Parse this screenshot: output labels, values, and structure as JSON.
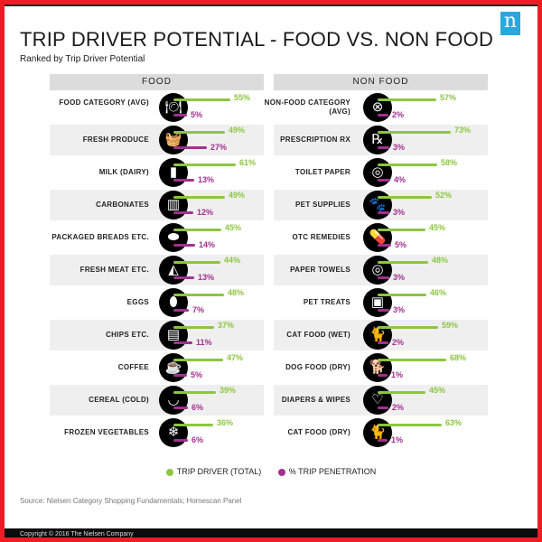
{
  "title": "TRIP DRIVER POTENTIAL - FOOD VS. NON FOOD",
  "subtitle": "Ranked by Trip Driver Potential",
  "logo": "n",
  "colors": {
    "trip_driver": "#8cc63f",
    "trip_penetration": "#a2308f"
  },
  "chart_data": [
    {
      "type": "bar",
      "title": "FOOD",
      "categories": [
        "FOOD CATEGORY (AVG)",
        "FRESH PRODUCE",
        "MILK (DAIRY)",
        "CARBONATES",
        "PACKAGED BREADS ETC.",
        "FRESH MEAT ETC.",
        "EGGS",
        "CHIPS ETC.",
        "COFFEE",
        "CEREAL (COLD)",
        "FROZEN VEGETABLES"
      ],
      "icons": [
        "plate-cutlery-icon",
        "basket-icon",
        "milk-carton-icon",
        "bottle-crate-icon",
        "bread-icon",
        "meat-icon",
        "egg-icon",
        "chips-bag-icon",
        "coffee-cup-icon",
        "cereal-bowl-icon",
        "frozen-bag-icon"
      ],
      "series": [
        {
          "name": "TRIP DRIVER (TOTAL)",
          "values": [
            55,
            49,
            61,
            49,
            45,
            44,
            48,
            37,
            47,
            39,
            36
          ]
        },
        {
          "name": "% TRIP PENETRATION",
          "values": [
            5,
            27,
            13,
            12,
            14,
            13,
            7,
            11,
            5,
            6,
            6
          ]
        }
      ],
      "unit": "%"
    },
    {
      "type": "bar",
      "title": "NON FOOD",
      "categories": [
        "NON-FOOD CATEGORY (AVG)",
        "PRESCRIPTION RX",
        "TOILET PAPER",
        "PET SUPPLIES",
        "OTC REMEDIES",
        "PAPER TOWELS",
        "PET TREATS",
        "CAT FOOD (WET)",
        "DOG FOOD (DRY)",
        "DIAPERS & WIPES",
        "CAT FOOD (DRY)"
      ],
      "icons": [
        "plate-x-icon",
        "rx-icon",
        "toilet-paper-icon",
        "paw-icon",
        "pills-icon",
        "paper-towel-icon",
        "pet-treats-icon",
        "cat-icon",
        "dog-icon",
        "diaper-icon",
        "cat-icon"
      ],
      "series": [
        {
          "name": "TRIP DRIVER (TOTAL)",
          "values": [
            57,
            73,
            58,
            52,
            45,
            48,
            46,
            59,
            68,
            45,
            63
          ]
        },
        {
          "name": "% TRIP PENETRATION",
          "values": [
            2,
            3,
            4,
            3,
            5,
            3,
            3,
            2,
            1,
            2,
            1
          ]
        }
      ],
      "unit": "%"
    }
  ],
  "legend": [
    "TRIP DRIVER (TOTAL)",
    "% TRIP PENETRATION"
  ],
  "source": "Source: Nielsen Category Shopping Fundamentals; Homescan Panel",
  "copyright": "Copyright © 2016 The Nielsen Company"
}
